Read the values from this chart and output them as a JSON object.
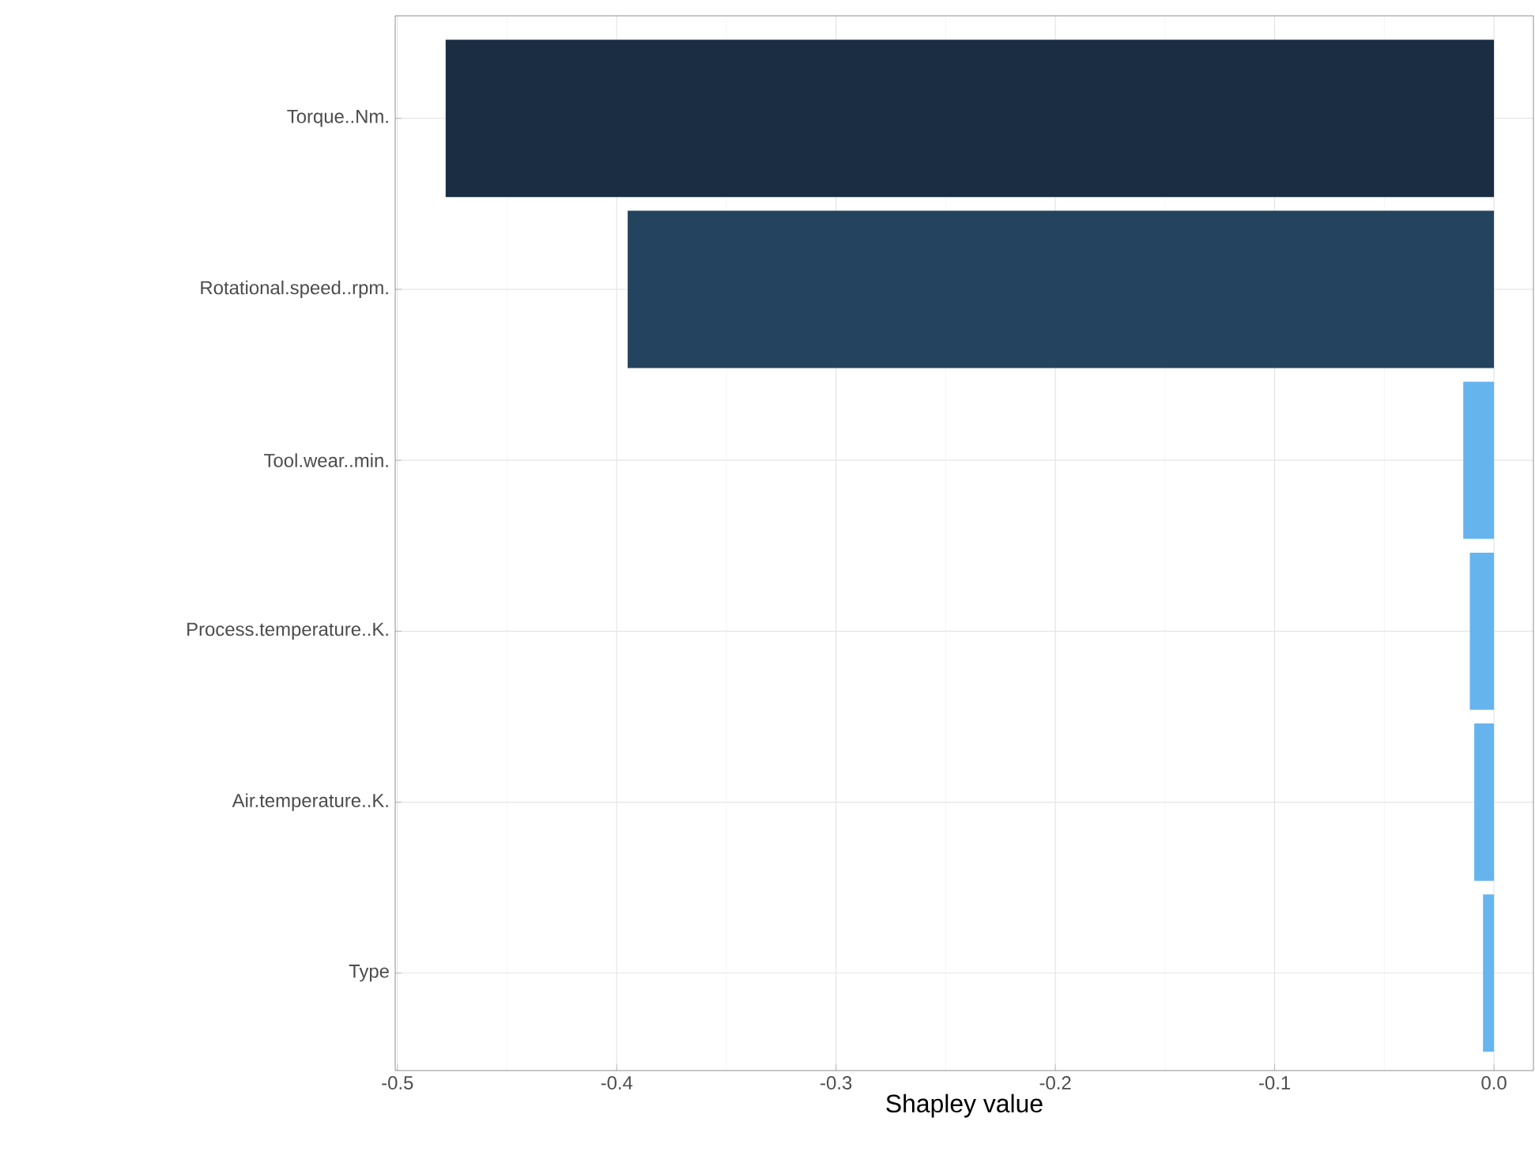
{
  "chart_data": {
    "type": "bar",
    "orientation": "horizontal",
    "xlabel": "Shapley value",
    "categories": [
      "Torque..Nm.",
      "Rotational.speed..rpm.",
      "Tool.wear..min.",
      "Process.temperature..K.",
      "Air.temperature..K.",
      "Type"
    ],
    "values": [
      -0.478,
      -0.395,
      -0.014,
      -0.011,
      -0.009,
      -0.005
    ],
    "colors": [
      "#1a2d42",
      "#23435f",
      "#66b4ee",
      "#66b4ee",
      "#66b4ee",
      "#66b5ef"
    ],
    "xlim": [
      -0.501,
      0.018
    ],
    "xticks": [
      -0.5,
      -0.4,
      -0.3,
      -0.2,
      -0.1,
      {
        "value": 0,
        "label": "0.0"
      }
    ],
    "grid": true
  }
}
